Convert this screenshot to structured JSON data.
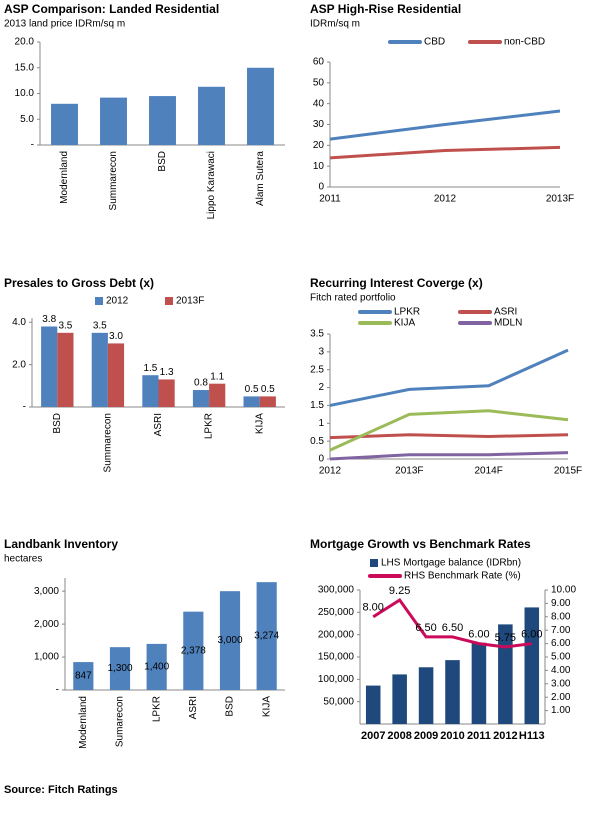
{
  "chart_data": [
    {
      "type": "bar",
      "title": "ASP Comparison: Landed Residential",
      "subtitle": "2013 land price IDRm/sq m",
      "categories": [
        "Modernland",
        "Summarecon",
        "BSD",
        "Lippo Karawaci",
        "Alam Sutera"
      ],
      "values": [
        8.0,
        9.2,
        9.5,
        11.3,
        15.0
      ],
      "color": "#4f81bd",
      "ylim": [
        0,
        20
      ],
      "yticks": [
        {
          "value": 0,
          "label": "-"
        },
        {
          "value": 5,
          "label": "5.0"
        },
        {
          "value": 10,
          "label": "10.0"
        },
        {
          "value": 15,
          "label": "15.0"
        },
        {
          "value": 20,
          "label": "20.0"
        }
      ]
    },
    {
      "type": "line",
      "title": "ASP High-Rise Residential",
      "subtitle": "IDRm/sq m",
      "categories": [
        "2011",
        "2012",
        "2013F"
      ],
      "series": [
        {
          "name": "CBD",
          "color": "#4f81bd",
          "values": [
            23,
            30,
            36.5
          ]
        },
        {
          "name": "non-CBD",
          "color": "#c0504d",
          "values": [
            14,
            17.5,
            19
          ]
        }
      ],
      "ylim": [
        0,
        60
      ],
      "yticks": [
        0,
        10,
        20,
        30,
        40,
        50,
        60
      ],
      "legend": "top"
    },
    {
      "type": "bar",
      "title": "Presales to Gross Debt (x)",
      "categories": [
        "BSD",
        "Summarecon",
        "ASRI",
        "LPKR",
        "KIJA"
      ],
      "series": [
        {
          "name": "2012",
          "color": "#4f81bd",
          "values": [
            3.8,
            3.5,
            1.5,
            0.8,
            0.5
          ],
          "value_labels": [
            "3.8",
            "3.5",
            "1.5",
            "0.8",
            "0.5"
          ]
        },
        {
          "name": "2013F",
          "color": "#c0504d",
          "values": [
            3.5,
            3.0,
            1.3,
            1.1,
            0.5
          ],
          "value_labels": [
            "3.5",
            "3.0",
            "1.3",
            "1.1",
            "0.5"
          ]
        }
      ],
      "ylim": [
        0,
        4.2
      ],
      "yticks": [
        {
          "value": 0,
          "label": "-"
        },
        {
          "value": 2,
          "label": "2.0"
        },
        {
          "value": 4,
          "label": "4.0"
        }
      ],
      "legend": "top"
    },
    {
      "type": "line",
      "title": "Recurring Interest Coverge (x)",
      "subtitle": "Fitch rated portfolio",
      "categories": [
        "2012",
        "2013F",
        "2014F",
        "2015F"
      ],
      "series": [
        {
          "name": "LPKR",
          "color": "#4f81bd",
          "values": [
            1.5,
            1.95,
            2.05,
            3.05
          ]
        },
        {
          "name": "ASRI",
          "color": "#c0504d",
          "values": [
            0.6,
            0.68,
            0.63,
            0.68
          ]
        },
        {
          "name": "KIJA",
          "color": "#9bbb59",
          "values": [
            0.25,
            1.25,
            1.35,
            1.1
          ]
        },
        {
          "name": "MDLN",
          "color": "#8064a2",
          "values": [
            0,
            0.12,
            0.12,
            0.18
          ]
        }
      ],
      "ylim": [
        0,
        3.5
      ],
      "yticks": [
        0,
        0.5,
        1,
        1.5,
        2,
        2.5,
        3,
        3.5
      ],
      "legend": "top"
    },
    {
      "type": "bar",
      "title": "Landbank Inventory",
      "subtitle": "hectares",
      "categories": [
        "Modernland",
        "Sumarecon",
        "LPKR",
        "ASRI",
        "BSD",
        "KIJA"
      ],
      "values": [
        847,
        1300,
        1400,
        2378,
        3000,
        3274
      ],
      "value_labels": [
        "847",
        "1,300",
        "1,400",
        "2,378",
        "3,000",
        "3,274"
      ],
      "color": "#4f81bd",
      "ylim": [
        0,
        3400
      ],
      "yticks": [
        {
          "value": 0,
          "label": "-"
        },
        {
          "value": 1000,
          "label": "1,000"
        },
        {
          "value": 2000,
          "label": "2,000"
        },
        {
          "value": 3000,
          "label": "3,000"
        }
      ]
    },
    {
      "type": "combo",
      "title": "Mortgage Growth vs Benchmark Rates",
      "categories": [
        "2007",
        "2008",
        "2009",
        "2010",
        "2011",
        "2012",
        "H113"
      ],
      "series": [
        {
          "name": "LHS Mortgage balance (IDRbn)",
          "type": "bar",
          "color": "#1f497d",
          "values": [
            86000,
            111000,
            127000,
            143000,
            182000,
            223000,
            261000
          ]
        },
        {
          "name": "RHS Benchmark Rate (%)",
          "type": "line",
          "axis": "y2",
          "color": "#cc0a5a",
          "values": [
            8.0,
            9.25,
            6.5,
            6.5,
            6.0,
            5.75,
            6.0
          ],
          "value_labels": [
            "8.00",
            "9.25",
            "6.50",
            "6.50",
            "6.00",
            "5.75",
            "6.00"
          ]
        }
      ],
      "ylim": [
        0,
        300000
      ],
      "yticks": [
        {
          "value": 50000,
          "label": "50,000"
        },
        {
          "value": 100000,
          "label": "100,000"
        },
        {
          "value": 150000,
          "label": "150,000"
        },
        {
          "value": 200000,
          "label": "200,000"
        },
        {
          "value": 250000,
          "label": "250,000"
        },
        {
          "value": 300000,
          "label": "300,000"
        }
      ],
      "y2lim": [
        0,
        10
      ],
      "y2ticks": [
        {
          "value": 1,
          "label": "1.00"
        },
        {
          "value": 2,
          "label": "2.00"
        },
        {
          "value": 3,
          "label": "3.00"
        },
        {
          "value": 4,
          "label": "4.00"
        },
        {
          "value": 5,
          "label": "5.00"
        },
        {
          "value": 6,
          "label": "6.00"
        },
        {
          "value": 7,
          "label": "7.00"
        },
        {
          "value": 8,
          "label": "8.00"
        },
        {
          "value": 9,
          "label": "9.00"
        },
        {
          "value": 10,
          "label": "10.00"
        }
      ],
      "legend": "top"
    }
  ],
  "source": "Source: Fitch Ratings"
}
